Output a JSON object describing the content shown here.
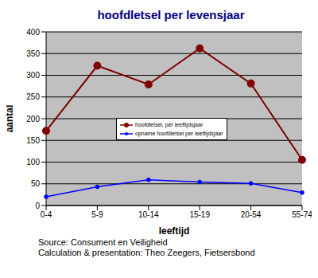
{
  "chart_data": {
    "type": "line",
    "title": "hoofdletsel per levensjaar",
    "x_label": "leeftijd",
    "y_label": "aantal",
    "categories": [
      "0-4",
      "5-9",
      "10-14",
      "15-19",
      "20-54",
      "55-74"
    ],
    "series": [
      {
        "name": "hoofdletsel, per leeftijdsjaar",
        "color": "#800000",
        "marker": "circle",
        "values": [
          172,
          322,
          279,
          362,
          281,
          105
        ]
      },
      {
        "name": "opname hoofdletsel per leeftijdsjaar",
        "color": "#0000ff",
        "marker": "circle",
        "values": [
          20,
          43,
          59,
          54,
          51,
          30
        ]
      }
    ],
    "ylim": [
      0,
      400
    ],
    "yticks": [
      0,
      50,
      100,
      150,
      200,
      250,
      300,
      350,
      400
    ],
    "grid": true,
    "legend": "center",
    "annotations": [
      "Source: Consument en Veiligheid",
      "Calculation & presentation: Theo Zeegers, Fietsersbond"
    ]
  }
}
